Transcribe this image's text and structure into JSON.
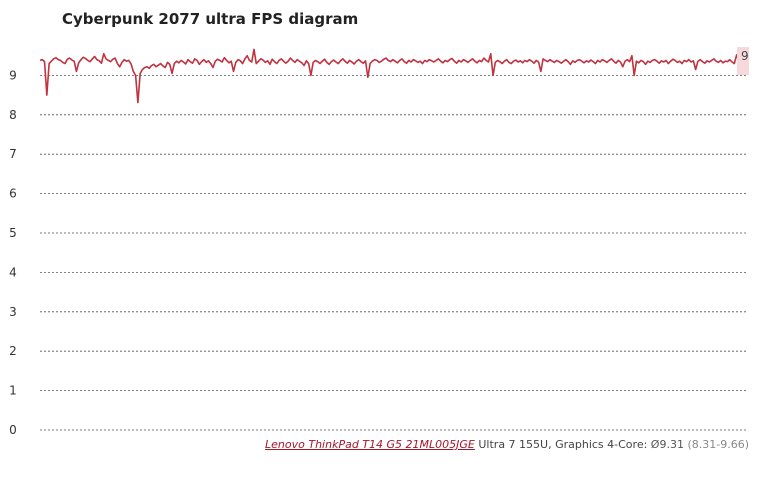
{
  "chart_data": {
    "type": "line",
    "title": "Cyberpunk 2077 ultra FPS diagram",
    "xlabel": "",
    "ylabel": "",
    "ylim": [
      0,
      10
    ],
    "yticks": [
      0,
      1,
      2,
      3,
      4,
      5,
      6,
      7,
      8,
      9
    ],
    "grid": true,
    "end_label": "9",
    "series": [
      {
        "name": "Lenovo ThinkPad T14 G5 21ML005JGE",
        "color": "#c0323f",
        "average": 9.31,
        "min": 8.31,
        "max": 9.66,
        "values": [
          9.38,
          9.4,
          9.35,
          8.5,
          9.3,
          9.36,
          9.42,
          9.45,
          9.4,
          9.38,
          9.33,
          9.3,
          9.41,
          9.44,
          9.39,
          9.36,
          9.1,
          9.32,
          9.4,
          9.46,
          9.43,
          9.38,
          9.35,
          9.42,
          9.48,
          9.4,
          9.37,
          9.31,
          9.55,
          9.42,
          9.38,
          9.35,
          9.41,
          9.44,
          9.3,
          9.22,
          9.33,
          9.4,
          9.36,
          9.38,
          9.29,
          9.1,
          9.0,
          8.31,
          9.05,
          9.15,
          9.2,
          9.22,
          9.18,
          9.25,
          9.28,
          9.22,
          9.26,
          9.3,
          9.24,
          9.2,
          9.33,
          9.28,
          9.05,
          9.3,
          9.36,
          9.32,
          9.38,
          9.34,
          9.29,
          9.4,
          9.35,
          9.31,
          9.42,
          9.38,
          9.28,
          9.35,
          9.4,
          9.33,
          9.37,
          9.3,
          9.2,
          9.36,
          9.41,
          9.38,
          9.34,
          9.45,
          9.38,
          9.32,
          9.36,
          9.1,
          9.33,
          9.4,
          9.37,
          9.3,
          9.42,
          9.5,
          9.38,
          9.34,
          9.66,
          9.3,
          9.36,
          9.42,
          9.39,
          9.33,
          9.37,
          9.28,
          9.41,
          9.35,
          9.3,
          9.38,
          9.42,
          9.36,
          9.31,
          9.36,
          9.44,
          9.38,
          9.33,
          9.4,
          9.36,
          9.32,
          9.25,
          9.37,
          9.3,
          9.0,
          9.33,
          9.38,
          9.35,
          9.3,
          9.36,
          9.41,
          9.33,
          9.28,
          9.35,
          9.39,
          9.34,
          9.3,
          9.37,
          9.42,
          9.36,
          9.31,
          9.38,
          9.34,
          9.29,
          9.36,
          9.4,
          9.35,
          9.31,
          9.37,
          8.95,
          9.3,
          9.36,
          9.4,
          9.38,
          9.33,
          9.36,
          9.41,
          9.44,
          9.38,
          9.35,
          9.4,
          9.36,
          9.32,
          9.38,
          9.42,
          9.35,
          9.31,
          9.38,
          9.34,
          9.4,
          9.37,
          9.33,
          9.36,
          9.3,
          9.38,
          9.35,
          9.4,
          9.37,
          9.34,
          9.38,
          9.42,
          9.36,
          9.32,
          9.38,
          9.35,
          9.4,
          9.43,
          9.36,
          9.31,
          9.38,
          9.34,
          9.4,
          9.37,
          9.33,
          9.38,
          9.42,
          9.36,
          9.32,
          9.38,
          9.35,
          9.44,
          9.38,
          9.34,
          9.55,
          9.0,
          9.33,
          9.38,
          9.35,
          9.3,
          9.36,
          9.4,
          9.33,
          9.3,
          9.36,
          9.39,
          9.34,
          9.37,
          9.32,
          9.38,
          9.35,
          9.4,
          9.36,
          9.31,
          9.38,
          9.34,
          9.1,
          9.42,
          9.38,
          9.35,
          9.4,
          9.36,
          9.33,
          9.38,
          9.35,
          9.31,
          9.36,
          9.4,
          9.35,
          9.28,
          9.37,
          9.33,
          9.38,
          9.4,
          9.36,
          9.32,
          9.37,
          9.34,
          9.39,
          9.35,
          9.3,
          9.38,
          9.34,
          9.4,
          9.37,
          9.33,
          9.38,
          9.42,
          9.36,
          9.31,
          9.38,
          9.34,
          9.22,
          9.36,
          9.4,
          9.35,
          9.5,
          9.0,
          9.36,
          9.32,
          9.38,
          9.35,
          9.28,
          9.36,
          9.33,
          9.38,
          9.4,
          9.36,
          9.31,
          9.37,
          9.34,
          9.38,
          9.3,
          9.36,
          9.41,
          9.38,
          9.33,
          9.36,
          9.3,
          9.38,
          9.35,
          9.4,
          9.34,
          9.37,
          9.15,
          9.36,
          9.4,
          9.35,
          9.31,
          9.37,
          9.34,
          9.38,
          9.42,
          9.36,
          9.33,
          9.38,
          9.32,
          9.36,
          9.35,
          9.4,
          9.34,
          9.3,
          9.52,
          9.36,
          9.33,
          9.42,
          9.3,
          9.15
        ]
      }
    ]
  },
  "footer": {
    "device_link": "Lenovo ThinkPad T14 G5 21ML005JGE",
    "device_spec": " Ultra 7 155U, Graphics 4-Core: ",
    "average": "Ø9.31",
    "range": " (8.31-9.66)"
  }
}
